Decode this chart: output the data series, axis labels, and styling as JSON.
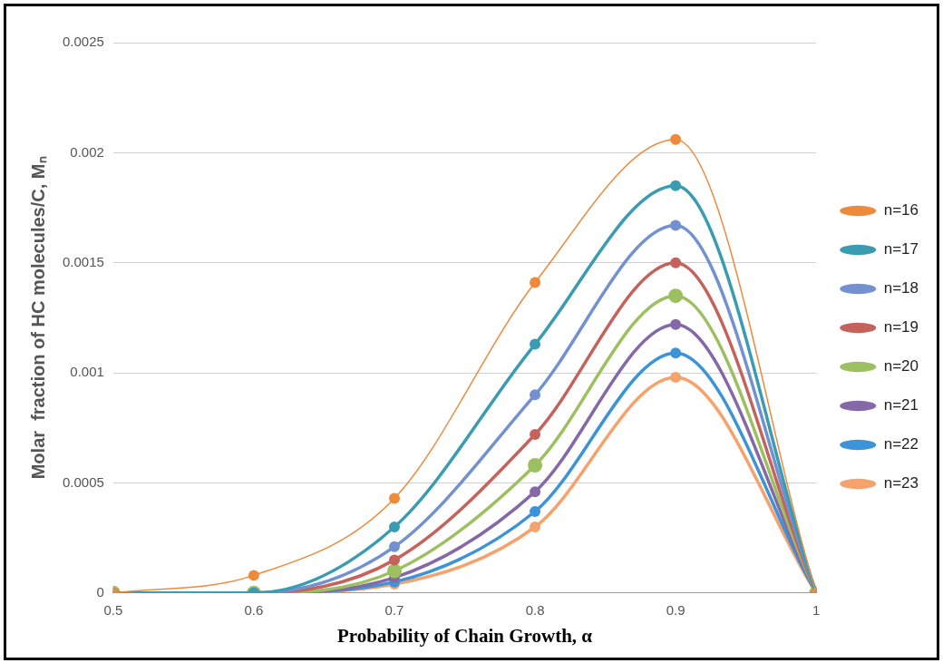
{
  "chart_data": {
    "type": "line",
    "xlabel": "Probability of Chain Growth, α",
    "ylabel": "Molar  fraction of HC molecules/C, Mₙ",
    "x": [
      0.5,
      0.6,
      0.7,
      0.8,
      0.9,
      1
    ],
    "xlim": [
      0.5,
      1
    ],
    "xticks": [
      0.5,
      0.6,
      0.7,
      0.8,
      0.9,
      1
    ],
    "ylim": [
      0,
      0.0025
    ],
    "yticks": [
      0,
      0.0005,
      0.001,
      0.0015,
      0.002,
      0.0025
    ],
    "grid": "y",
    "legend": "right",
    "marker": "circle",
    "line_style": "solid",
    "series": [
      {
        "name": "n=16",
        "color": "#ed8a3c",
        "values": [
          0,
          8e-05,
          0.00043,
          0.00141,
          0.00206,
          0
        ]
      },
      {
        "name": "n=17",
        "color": "#3a9cb3",
        "values": [
          0,
          0,
          0.0003,
          0.00113,
          0.00185,
          0
        ]
      },
      {
        "name": "n=18",
        "color": "#7391d1",
        "values": [
          0,
          0,
          0.00021,
          0.0009,
          0.00167,
          0
        ]
      },
      {
        "name": "n=19",
        "color": "#c5625c",
        "values": [
          0,
          0,
          0.00015,
          0.00072,
          0.0015,
          0
        ]
      },
      {
        "name": "n=20",
        "color": "#9cc05f",
        "values": [
          0,
          0,
          0.0001,
          0.00058,
          0.00135,
          0
        ]
      },
      {
        "name": "n=21",
        "color": "#8468a8",
        "values": [
          0,
          0,
          7e-05,
          0.00046,
          0.00122,
          0
        ]
      },
      {
        "name": "n=22",
        "color": "#3d93d8",
        "values": [
          0,
          0,
          5e-05,
          0.00037,
          0.00109,
          0
        ]
      },
      {
        "name": "n=23",
        "color": "#f5a26c",
        "values": [
          0,
          0,
          4e-05,
          0.0003,
          0.00098,
          0
        ]
      }
    ]
  }
}
